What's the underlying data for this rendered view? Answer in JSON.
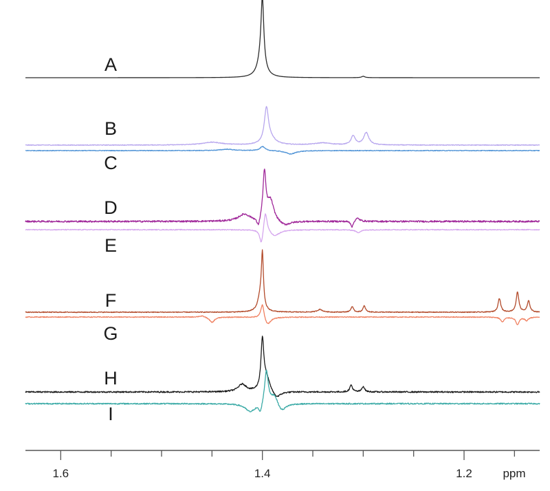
{
  "chart_data": {
    "type": "line",
    "title": "",
    "xlabel": "ppm",
    "ylabel": "",
    "xlim": [
      1.635,
      1.125
    ],
    "x_reversed": true,
    "grid": false,
    "ticks": {
      "major": [
        1.6,
        1.4,
        1.2
      ],
      "major_labels": [
        "1.6",
        "1.4",
        "1.2"
      ],
      "minor_step": 0.05
    },
    "series": [
      {
        "name": "A",
        "color": "#2b2b2b",
        "noise": 0.0,
        "peaks": [
          {
            "x": 1.4,
            "h": 90,
            "w": 0.0016
          },
          {
            "x": 1.401,
            "h": 30,
            "w": 0.004
          },
          {
            "x": 1.3,
            "h": 2,
            "w": 0.002
          }
        ]
      },
      {
        "name": "B",
        "color": "#b7a6ee",
        "noise": 0.5,
        "peaks": [
          {
            "x": 1.396,
            "h": 50,
            "w": 0.0025
          },
          {
            "x": 1.392,
            "h": 8,
            "w": 0.006
          },
          {
            "x": 1.31,
            "h": 13,
            "w": 0.0025
          },
          {
            "x": 1.297,
            "h": 18,
            "w": 0.003
          },
          {
            "x": 1.45,
            "h": 4,
            "w": 0.012
          },
          {
            "x": 1.34,
            "h": 3,
            "w": 0.01
          }
        ]
      },
      {
        "name": "C",
        "color": "#4f93d6",
        "noise": 0.5,
        "peaks": [
          {
            "x": 1.4,
            "h": 6,
            "w": 0.003
          },
          {
            "x": 1.372,
            "h": -5,
            "w": 0.006
          },
          {
            "x": 1.435,
            "h": 2,
            "w": 0.008
          }
        ]
      },
      {
        "name": "D",
        "color": "#a0289a",
        "noise": 1.2,
        "peaks": [
          {
            "x": 1.398,
            "h": 68,
            "w": 0.0018
          },
          {
            "x": 1.392,
            "h": 30,
            "w": 0.004
          },
          {
            "x": 1.418,
            "h": 10,
            "w": 0.007
          },
          {
            "x": 1.404,
            "h": -14,
            "w": 0.002
          },
          {
            "x": 1.378,
            "h": -7,
            "w": 0.007
          },
          {
            "x": 1.311,
            "h": -9,
            "w": 0.0015
          },
          {
            "x": 1.306,
            "h": 5,
            "w": 0.003
          }
        ]
      },
      {
        "name": "E",
        "color": "#d5a6ee",
        "noise": 0.6,
        "peaks": [
          {
            "x": 1.397,
            "h": 30,
            "w": 0.002
          },
          {
            "x": 1.401,
            "h": -22,
            "w": 0.002
          },
          {
            "x": 1.388,
            "h": -9,
            "w": 0.006
          },
          {
            "x": 1.305,
            "h": -4,
            "w": 0.003
          }
        ]
      },
      {
        "name": "F",
        "color": "#b24a2a",
        "noise": 0.6,
        "peaks": [
          {
            "x": 1.4,
            "h": 75,
            "w": 0.0012
          },
          {
            "x": 1.402,
            "h": 22,
            "w": 0.003
          },
          {
            "x": 1.343,
            "h": 4,
            "w": 0.003
          },
          {
            "x": 1.311,
            "h": 8,
            "w": 0.0015
          },
          {
            "x": 1.299,
            "h": 9,
            "w": 0.0015
          },
          {
            "x": 1.165,
            "h": 20,
            "w": 0.0016
          },
          {
            "x": 1.147,
            "h": 29,
            "w": 0.0016
          },
          {
            "x": 1.136,
            "h": 16,
            "w": 0.0016
          }
        ]
      },
      {
        "name": "G",
        "color": "#f08060",
        "noise": 0.6,
        "peaks": [
          {
            "x": 1.4,
            "h": 22,
            "w": 0.002
          },
          {
            "x": 1.395,
            "h": -12,
            "w": 0.004
          },
          {
            "x": 1.45,
            "h": -8,
            "w": 0.003
          },
          {
            "x": 1.46,
            "h": 2,
            "w": 0.004
          },
          {
            "x": 1.162,
            "h": -7,
            "w": 0.002
          },
          {
            "x": 1.147,
            "h": -11,
            "w": 0.002
          },
          {
            "x": 1.138,
            "h": -5,
            "w": 0.002
          }
        ]
      },
      {
        "name": "H",
        "color": "#1a1a1a",
        "noise": 1.0,
        "peaks": [
          {
            "x": 1.4,
            "h": 72,
            "w": 0.0017
          },
          {
            "x": 1.396,
            "h": 20,
            "w": 0.004
          },
          {
            "x": 1.42,
            "h": 11,
            "w": 0.005
          },
          {
            "x": 1.386,
            "h": -10,
            "w": 0.005
          },
          {
            "x": 1.312,
            "h": 10,
            "w": 0.0016
          },
          {
            "x": 1.3,
            "h": 8,
            "w": 0.0016
          }
        ]
      },
      {
        "name": "I",
        "color": "#3aaaa6",
        "noise": 0.9,
        "peaks": [
          {
            "x": 1.396,
            "h": 50,
            "w": 0.0022
          },
          {
            "x": 1.388,
            "h": 14,
            "w": 0.004
          },
          {
            "x": 1.402,
            "h": -14,
            "w": 0.002
          },
          {
            "x": 1.412,
            "h": -12,
            "w": 0.006
          },
          {
            "x": 1.381,
            "h": -12,
            "w": 0.005
          }
        ]
      }
    ]
  }
}
